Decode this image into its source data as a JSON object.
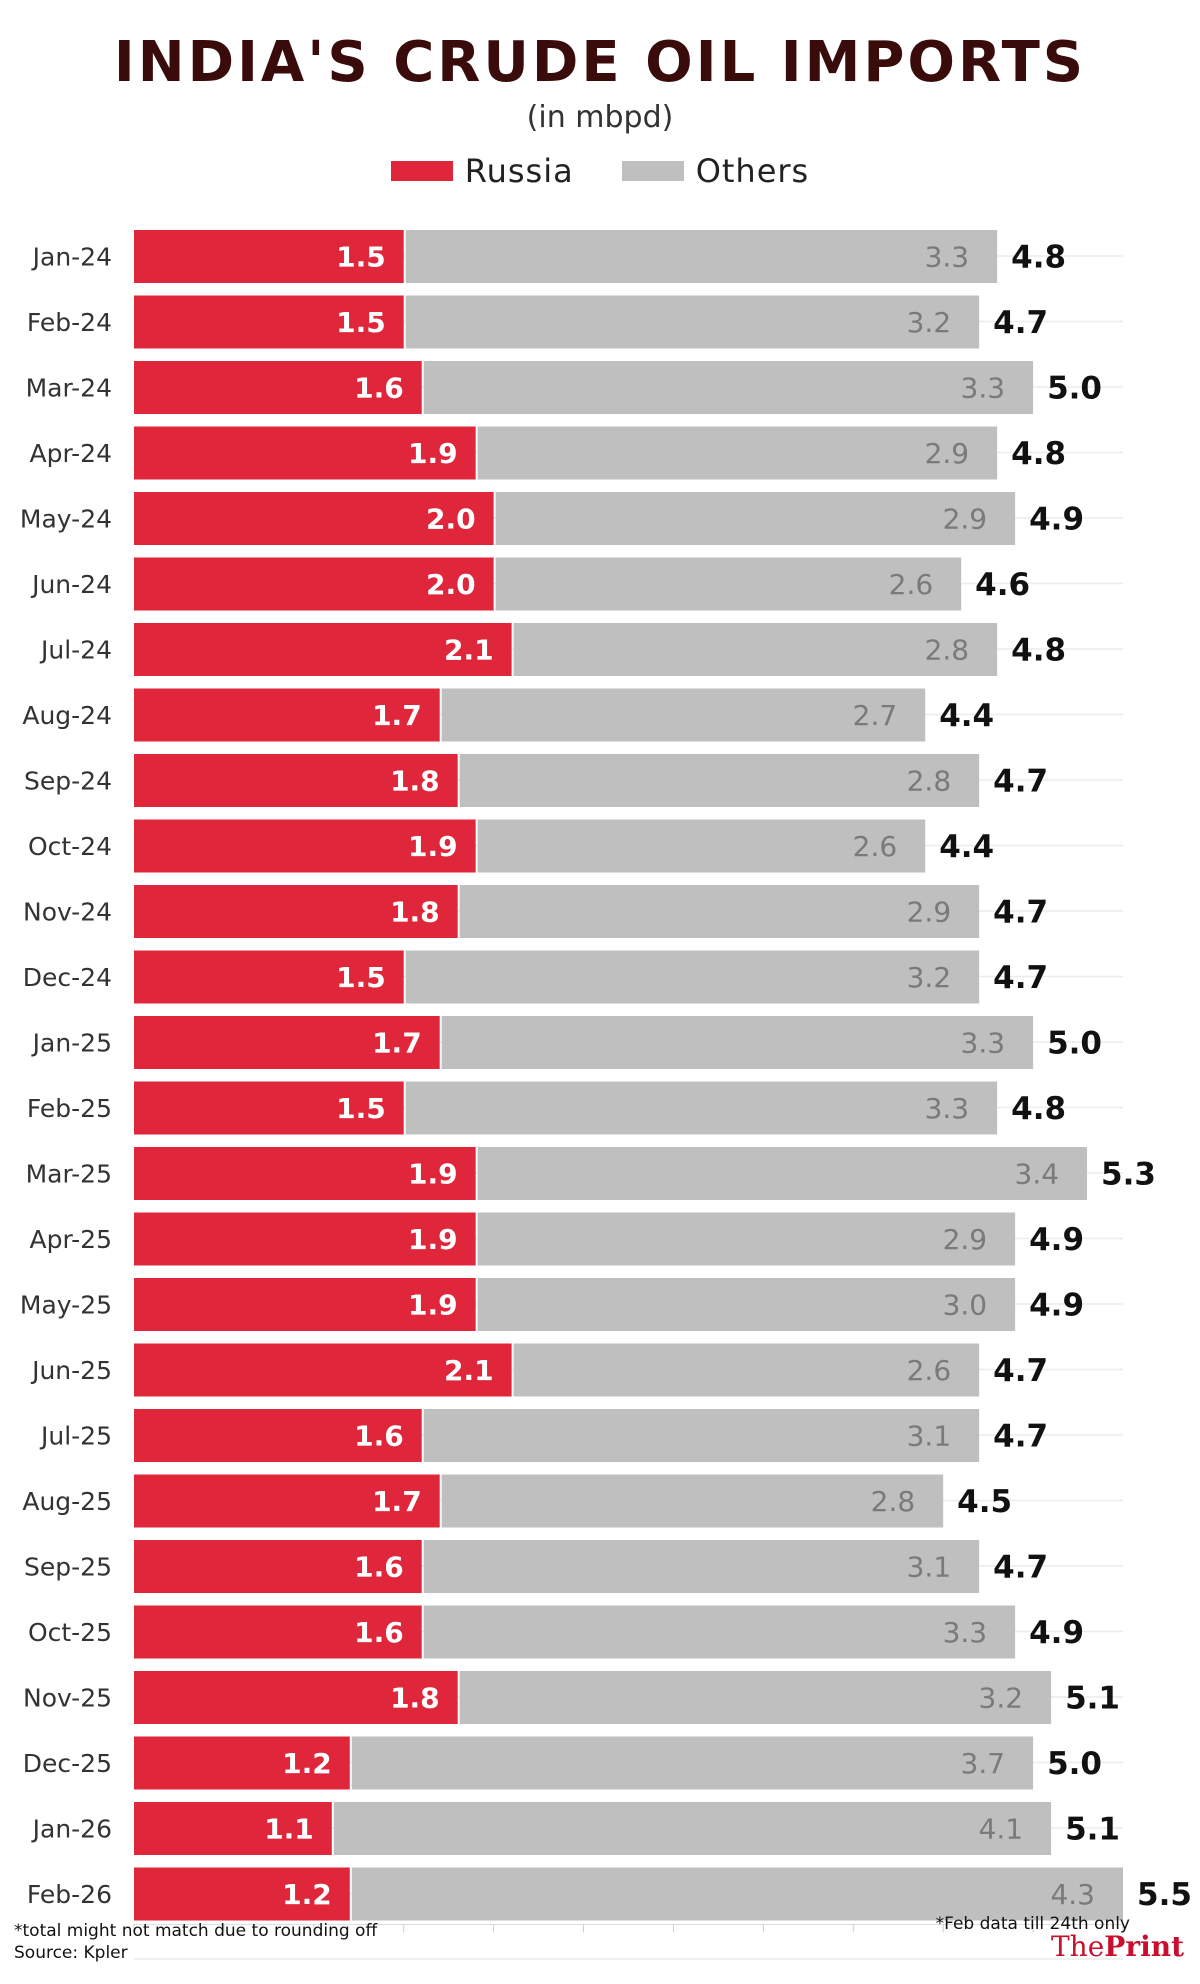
{
  "chart_data": {
    "type": "bar",
    "stacked": true,
    "orientation": "horizontal",
    "title": "INDIA'S CRUDE OIL IMPORTS",
    "subtitle": "(in mbpd)",
    "categories": [
      "Jan-24",
      "Feb-24",
      "Mar-24",
      "Apr-24",
      "May-24",
      "Jun-24",
      "Jul-24",
      "Aug-24",
      "Sep-24",
      "Oct-24",
      "Nov-24",
      "Dec-24",
      "Jan-25",
      "Feb-25",
      "Mar-25",
      "Apr-25",
      "May-25",
      "Jun-25",
      "Jul-25",
      "Aug-25",
      "Sep-25",
      "Oct-25",
      "Nov-25",
      "Dec-25",
      "Jan-26",
      "Feb-26"
    ],
    "series": [
      {
        "name": "Russia",
        "color": "#e0263a",
        "values": [
          1.5,
          1.5,
          1.6,
          1.9,
          2.0,
          2.0,
          2.1,
          1.7,
          1.8,
          1.9,
          1.8,
          1.5,
          1.7,
          1.5,
          1.9,
          1.9,
          1.9,
          2.1,
          1.6,
          1.7,
          1.6,
          1.6,
          1.8,
          1.2,
          1.1,
          1.2
        ],
        "labels": [
          "1.5",
          "1.5",
          "1.6",
          "1.9",
          "2.0",
          "2.0",
          "2.1",
          "1.7",
          "1.8",
          "1.9",
          "1.8",
          "1.5",
          "1.7",
          "1.5",
          "1.9",
          "1.9",
          "1.9",
          "2.1",
          "1.6",
          "1.7",
          "1.6",
          "1.6",
          "1.8",
          "1.2",
          "1.1",
          "1.2"
        ]
      },
      {
        "name": "Others",
        "color": "#bfbfbf",
        "values": [
          3.3,
          3.2,
          3.3,
          2.9,
          2.9,
          2.6,
          2.8,
          2.7,
          2.8,
          2.6,
          2.9,
          3.2,
          3.3,
          3.3,
          3.4,
          2.9,
          3.0,
          2.6,
          3.1,
          2.8,
          3.1,
          3.3,
          3.2,
          3.7,
          4.1,
          4.3
        ],
        "labels": [
          "3.3",
          "3.2",
          "3.3",
          "2.9",
          "2.9",
          "2.6",
          "2.8",
          "2.7",
          "2.8",
          "2.6",
          "2.9",
          "3.2",
          "3.3",
          "3.3",
          "3.4",
          "2.9",
          "3.0",
          "2.6",
          "3.1",
          "2.8",
          "3.1",
          "3.3",
          "3.2",
          "3.7",
          "4.1",
          "4.3"
        ]
      }
    ],
    "totals": [
      4.8,
      4.7,
      5.0,
      4.8,
      4.9,
      4.6,
      4.8,
      4.4,
      4.7,
      4.4,
      4.7,
      4.7,
      5.0,
      4.8,
      5.3,
      4.9,
      4.9,
      4.7,
      4.7,
      4.5,
      4.7,
      4.9,
      5.1,
      5.0,
      5.1,
      5.5
    ],
    "total_labels": [
      "4.8",
      "4.7",
      "5.0",
      "4.8",
      "4.9",
      "4.6",
      "4.8",
      "4.4",
      "4.7",
      "4.4",
      "4.7",
      "4.7",
      "5.0",
      "4.8",
      "5.3",
      "4.9",
      "4.9",
      "4.7",
      "4.7",
      "4.5",
      "4.7",
      "4.9",
      "5.1",
      "5.0",
      "5.1",
      "5.5"
    ],
    "xlim": [
      0,
      5.5
    ],
    "grid": true,
    "legend": "top-center"
  },
  "footnotes": {
    "rounding": "*total might not match due to rounding off",
    "source": "Source: Kpler",
    "feb_note": "*Feb data till 24th only"
  },
  "branding": {
    "logo_the": "The",
    "logo_print": "Print"
  }
}
